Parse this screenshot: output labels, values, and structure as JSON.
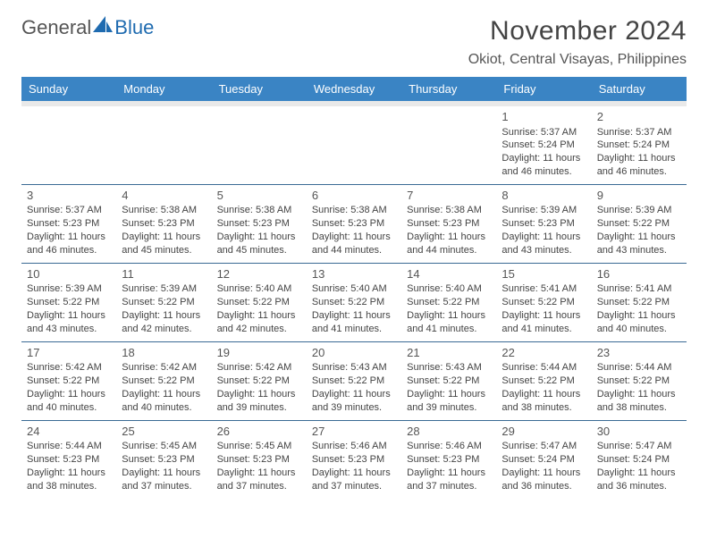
{
  "logo": {
    "text1": "General",
    "text2": "Blue"
  },
  "title": "November 2024",
  "location": "Okiot, Central Visayas, Philippines",
  "colors": {
    "header_bg": "#3a84c4",
    "header_fg": "#ffffff",
    "row_border": "#3a6a94",
    "blank_bg": "#e9e9e9",
    "text": "#444444",
    "logo_blue": "#1f6bb0"
  },
  "day_headers": [
    "Sunday",
    "Monday",
    "Tuesday",
    "Wednesday",
    "Thursday",
    "Friday",
    "Saturday"
  ],
  "weeks": [
    [
      null,
      null,
      null,
      null,
      null,
      {
        "n": "1",
        "sr": "5:37 AM",
        "ss": "5:24 PM",
        "dl": "11 hours and 46 minutes."
      },
      {
        "n": "2",
        "sr": "5:37 AM",
        "ss": "5:24 PM",
        "dl": "11 hours and 46 minutes."
      }
    ],
    [
      {
        "n": "3",
        "sr": "5:37 AM",
        "ss": "5:23 PM",
        "dl": "11 hours and 46 minutes."
      },
      {
        "n": "4",
        "sr": "5:38 AM",
        "ss": "5:23 PM",
        "dl": "11 hours and 45 minutes."
      },
      {
        "n": "5",
        "sr": "5:38 AM",
        "ss": "5:23 PM",
        "dl": "11 hours and 45 minutes."
      },
      {
        "n": "6",
        "sr": "5:38 AM",
        "ss": "5:23 PM",
        "dl": "11 hours and 44 minutes."
      },
      {
        "n": "7",
        "sr": "5:38 AM",
        "ss": "5:23 PM",
        "dl": "11 hours and 44 minutes."
      },
      {
        "n": "8",
        "sr": "5:39 AM",
        "ss": "5:23 PM",
        "dl": "11 hours and 43 minutes."
      },
      {
        "n": "9",
        "sr": "5:39 AM",
        "ss": "5:22 PM",
        "dl": "11 hours and 43 minutes."
      }
    ],
    [
      {
        "n": "10",
        "sr": "5:39 AM",
        "ss": "5:22 PM",
        "dl": "11 hours and 43 minutes."
      },
      {
        "n": "11",
        "sr": "5:39 AM",
        "ss": "5:22 PM",
        "dl": "11 hours and 42 minutes."
      },
      {
        "n": "12",
        "sr": "5:40 AM",
        "ss": "5:22 PM",
        "dl": "11 hours and 42 minutes."
      },
      {
        "n": "13",
        "sr": "5:40 AM",
        "ss": "5:22 PM",
        "dl": "11 hours and 41 minutes."
      },
      {
        "n": "14",
        "sr": "5:40 AM",
        "ss": "5:22 PM",
        "dl": "11 hours and 41 minutes."
      },
      {
        "n": "15",
        "sr": "5:41 AM",
        "ss": "5:22 PM",
        "dl": "11 hours and 41 minutes."
      },
      {
        "n": "16",
        "sr": "5:41 AM",
        "ss": "5:22 PM",
        "dl": "11 hours and 40 minutes."
      }
    ],
    [
      {
        "n": "17",
        "sr": "5:42 AM",
        "ss": "5:22 PM",
        "dl": "11 hours and 40 minutes."
      },
      {
        "n": "18",
        "sr": "5:42 AM",
        "ss": "5:22 PM",
        "dl": "11 hours and 40 minutes."
      },
      {
        "n": "19",
        "sr": "5:42 AM",
        "ss": "5:22 PM",
        "dl": "11 hours and 39 minutes."
      },
      {
        "n": "20",
        "sr": "5:43 AM",
        "ss": "5:22 PM",
        "dl": "11 hours and 39 minutes."
      },
      {
        "n": "21",
        "sr": "5:43 AM",
        "ss": "5:22 PM",
        "dl": "11 hours and 39 minutes."
      },
      {
        "n": "22",
        "sr": "5:44 AM",
        "ss": "5:22 PM",
        "dl": "11 hours and 38 minutes."
      },
      {
        "n": "23",
        "sr": "5:44 AM",
        "ss": "5:22 PM",
        "dl": "11 hours and 38 minutes."
      }
    ],
    [
      {
        "n": "24",
        "sr": "5:44 AM",
        "ss": "5:23 PM",
        "dl": "11 hours and 38 minutes."
      },
      {
        "n": "25",
        "sr": "5:45 AM",
        "ss": "5:23 PM",
        "dl": "11 hours and 37 minutes."
      },
      {
        "n": "26",
        "sr": "5:45 AM",
        "ss": "5:23 PM",
        "dl": "11 hours and 37 minutes."
      },
      {
        "n": "27",
        "sr": "5:46 AM",
        "ss": "5:23 PM",
        "dl": "11 hours and 37 minutes."
      },
      {
        "n": "28",
        "sr": "5:46 AM",
        "ss": "5:23 PM",
        "dl": "11 hours and 37 minutes."
      },
      {
        "n": "29",
        "sr": "5:47 AM",
        "ss": "5:24 PM",
        "dl": "11 hours and 36 minutes."
      },
      {
        "n": "30",
        "sr": "5:47 AM",
        "ss": "5:24 PM",
        "dl": "11 hours and 36 minutes."
      }
    ]
  ],
  "labels": {
    "sunrise": "Sunrise: ",
    "sunset": "Sunset: ",
    "daylight": "Daylight: "
  }
}
